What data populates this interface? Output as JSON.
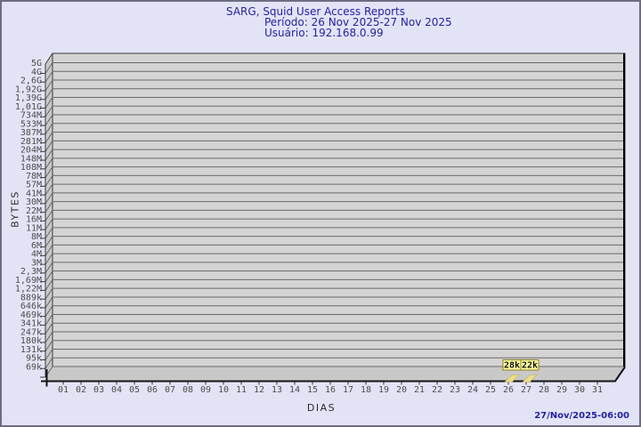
{
  "title": {
    "line1": "SARG, Squid User Access Reports",
    "line2": "Período: 26 Nov 2025-27 Nov 2025",
    "line3": "Usuário: 192.168.0.99"
  },
  "footer": {
    "timestamp": "27/Nov/2025-06:00"
  },
  "chart_data": {
    "type": "bar",
    "title": "SARG, Squid User Access Reports",
    "subtitle": "Período: 26 Nov 2025-27 Nov 2025",
    "user": "192.168.0.99",
    "xlabel": "DIAS",
    "ylabel": "BYTES",
    "y_scale": "log",
    "grid": true,
    "y_ticks": [
      "5G",
      "4G",
      "2,6G",
      "1,92G",
      "1,39G",
      "1,01G",
      "734M",
      "533M",
      "387M",
      "281M",
      "204M",
      "148M",
      "108M",
      "78M",
      "57M",
      "41M",
      "30M",
      "22M",
      "16M",
      "11M",
      "8M",
      "6M",
      "4M",
      "3M",
      "2,3M",
      "1,69M",
      "1,22M",
      "889k",
      "646k",
      "469k",
      "341k",
      "247k",
      "180k",
      "131k",
      "95k",
      "69k"
    ],
    "x_ticks": [
      "01",
      "02",
      "03",
      "04",
      "05",
      "06",
      "07",
      "08",
      "09",
      "10",
      "11",
      "12",
      "13",
      "14",
      "15",
      "16",
      "17",
      "18",
      "19",
      "20",
      "21",
      "22",
      "23",
      "24",
      "25",
      "26",
      "27",
      "28",
      "29",
      "30",
      "31"
    ],
    "bars": [
      {
        "day": "26",
        "value_label": "28k",
        "value_bytes": 28000
      },
      {
        "day": "27",
        "value_label": "22k",
        "value_bytes": 22000
      }
    ],
    "colors": {
      "background": "#e3e3f6",
      "frame_border": "#6c6c82",
      "wall_fill": "#d4d4d4",
      "side_fill": "#c8c8c8",
      "grid_line": "#6a6a6a",
      "edge_dark": "#3a3a3a",
      "axis_black": "#141414",
      "tick_text": "#4d4d4d",
      "bar_fill": "#ecdc8c",
      "bar_border": "#c2b060",
      "label_box_fill": "#ffffa4",
      "label_box_border": "#8f7d1d",
      "label_text": "#111111",
      "title_text": "#2323a2"
    }
  }
}
